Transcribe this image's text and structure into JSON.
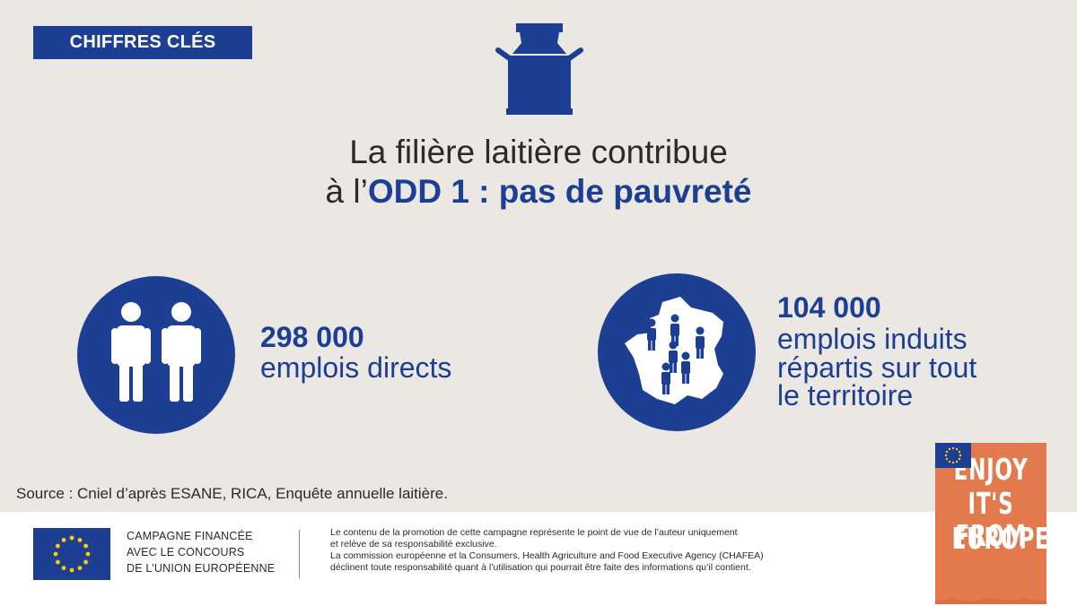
{
  "header": {
    "tag": "CHIFFRES CLÉS"
  },
  "title": {
    "line1": "La filière laitière contribue",
    "line2_prefix": "à l’",
    "line2_strong": "ODD 1 : pas de pauvreté"
  },
  "stats": {
    "direct": {
      "value": "298 000",
      "label": "emplois directs"
    },
    "induced": {
      "value": "104 000",
      "label_line1": "emplois induits",
      "label_line2": "répartis sur tout",
      "label_line3": "le territoire"
    }
  },
  "source": "Source : Cniel d’après ESANE, RICA, Enquête annuelle laitière.",
  "footer": {
    "campaign_line1": "CAMPAGNE FINANCÉE",
    "campaign_line2": "AVEC LE CONCOURS",
    "campaign_line3": "DE L’UNION EUROPÉENNE",
    "legal_line1": "Le contenu de la promotion de cette campagne représente le point de vue de l’auteur uniquement",
    "legal_line2": "et relève de sa responsabilité exclusive.",
    "legal_line3": "La commission européenne et la Consumers, Health Agriculture and Food Executive Agency (CHAFEA)",
    "legal_line4": "déclinent toute responsabilité quant à l’utilisation qui pourrait être faite des informations qu’il contient."
  },
  "badge": {
    "line1": "ENJOY",
    "line2": "IT'S FROM",
    "line3": "EUROPE"
  },
  "colors": {
    "brand_blue": "#1c3f94",
    "background": "#ebe8e4",
    "badge_orange": "#e27a4d",
    "eu_yellow": "#ffcc00"
  }
}
